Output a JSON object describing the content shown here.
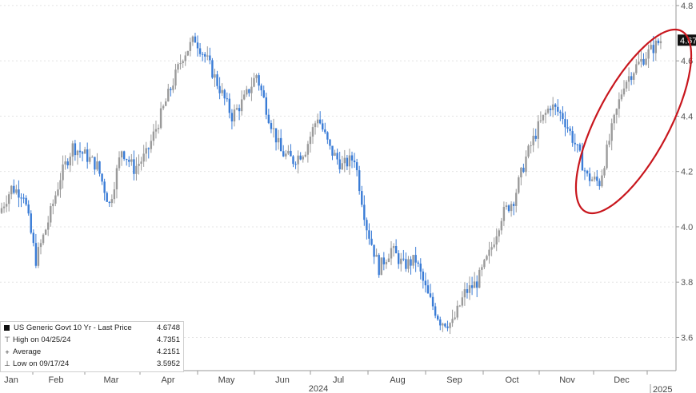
{
  "chart_data": {
    "type": "candlestick",
    "title": "",
    "xlabel": "2024",
    "ylabel": "",
    "ylim": [
      3.48,
      4.82
    ],
    "y_ticks": [
      3.6,
      3.8,
      4.0,
      4.2,
      4.4,
      4.6,
      4.8
    ],
    "y_tick_labels": [
      "3.6",
      "3.8",
      "4.0",
      "4.2",
      "4.4",
      "4.6",
      "4.8"
    ],
    "x_ticks": [
      "Jan",
      "Feb",
      "Mar",
      "Apr",
      "May",
      "Jun",
      "Jul",
      "Aug",
      "Sep",
      "Oct",
      "Nov",
      "Dec"
    ],
    "x_next_year_label": "2025",
    "last_price_label": "4.67",
    "series_colors": {
      "up": "#3a7cd6",
      "down": "#9a9a9a",
      "annotation": "#c8161d",
      "legend_marker": "#111111"
    },
    "grid": "horizontal-dashed",
    "weekly_closes": [
      {
        "week": "2024-01-05",
        "value": 4.05
      },
      {
        "week": "2024-01-12",
        "value": 4.14
      },
      {
        "week": "2024-01-19",
        "value": 4.12
      },
      {
        "week": "2024-01-26",
        "value": 3.88
      },
      {
        "week": "2024-02-02",
        "value": 4.02
      },
      {
        "week": "2024-02-09",
        "value": 4.18
      },
      {
        "week": "2024-02-16",
        "value": 4.29
      },
      {
        "week": "2024-02-23",
        "value": 4.26
      },
      {
        "week": "2024-03-01",
        "value": 4.22
      },
      {
        "week": "2024-03-08",
        "value": 4.08
      },
      {
        "week": "2024-03-15",
        "value": 4.28
      },
      {
        "week": "2024-03-22",
        "value": 4.21
      },
      {
        "week": "2024-03-29",
        "value": 4.26
      },
      {
        "week": "2024-04-05",
        "value": 4.38
      },
      {
        "week": "2024-04-12",
        "value": 4.5
      },
      {
        "week": "2024-04-19",
        "value": 4.62
      },
      {
        "week": "2024-04-26",
        "value": 4.68
      },
      {
        "week": "2024-05-03",
        "value": 4.6
      },
      {
        "week": "2024-05-10",
        "value": 4.5
      },
      {
        "week": "2024-05-17",
        "value": 4.4
      },
      {
        "week": "2024-05-24",
        "value": 4.46
      },
      {
        "week": "2024-05-31",
        "value": 4.55
      },
      {
        "week": "2024-06-07",
        "value": 4.4
      },
      {
        "week": "2024-06-14",
        "value": 4.27
      },
      {
        "week": "2024-06-21",
        "value": 4.24
      },
      {
        "week": "2024-06-28",
        "value": 4.28
      },
      {
        "week": "2024-07-05",
        "value": 4.4
      },
      {
        "week": "2024-07-12",
        "value": 4.28
      },
      {
        "week": "2024-07-19",
        "value": 4.22
      },
      {
        "week": "2024-07-26",
        "value": 4.25
      },
      {
        "week": "2024-08-02",
        "value": 4.0
      },
      {
        "week": "2024-08-09",
        "value": 3.85
      },
      {
        "week": "2024-08-16",
        "value": 3.92
      },
      {
        "week": "2024-08-23",
        "value": 3.86
      },
      {
        "week": "2024-08-30",
        "value": 3.88
      },
      {
        "week": "2024-09-06",
        "value": 3.75
      },
      {
        "week": "2024-09-13",
        "value": 3.66
      },
      {
        "week": "2024-09-20",
        "value": 3.65
      },
      {
        "week": "2024-09-27",
        "value": 3.76
      },
      {
        "week": "2024-10-04",
        "value": 3.8
      },
      {
        "week": "2024-10-11",
        "value": 3.9
      },
      {
        "week": "2024-10-18",
        "value": 4.04
      },
      {
        "week": "2024-10-25",
        "value": 4.1
      },
      {
        "week": "2024-11-01",
        "value": 4.25
      },
      {
        "week": "2024-11-08",
        "value": 4.36
      },
      {
        "week": "2024-11-15",
        "value": 4.44
      },
      {
        "week": "2024-11-22",
        "value": 4.4
      },
      {
        "week": "2024-11-29",
        "value": 4.3
      },
      {
        "week": "2024-12-06",
        "value": 4.18
      },
      {
        "week": "2024-12-13",
        "value": 4.16
      },
      {
        "week": "2024-12-20",
        "value": 4.35
      },
      {
        "week": "2024-12-27",
        "value": 4.52
      },
      {
        "week": "2025-01-03",
        "value": 4.58
      },
      {
        "week": "2025-01-10",
        "value": 4.63
      },
      {
        "week": "2025-01-14",
        "value": 4.6748
      }
    ]
  },
  "legend": {
    "rows": [
      {
        "symbol": "■",
        "label": "US Generic Govt 10 Yr - Last Price",
        "value": "4.6748"
      },
      {
        "symbol": "⊤",
        "label": "High on 04/25/24",
        "value": "4.7351"
      },
      {
        "symbol": "+",
        "label": "Average",
        "value": "4.2151"
      },
      {
        "symbol": "⊥",
        "label": "Low on 09/17/24",
        "value": "3.5952"
      }
    ]
  }
}
